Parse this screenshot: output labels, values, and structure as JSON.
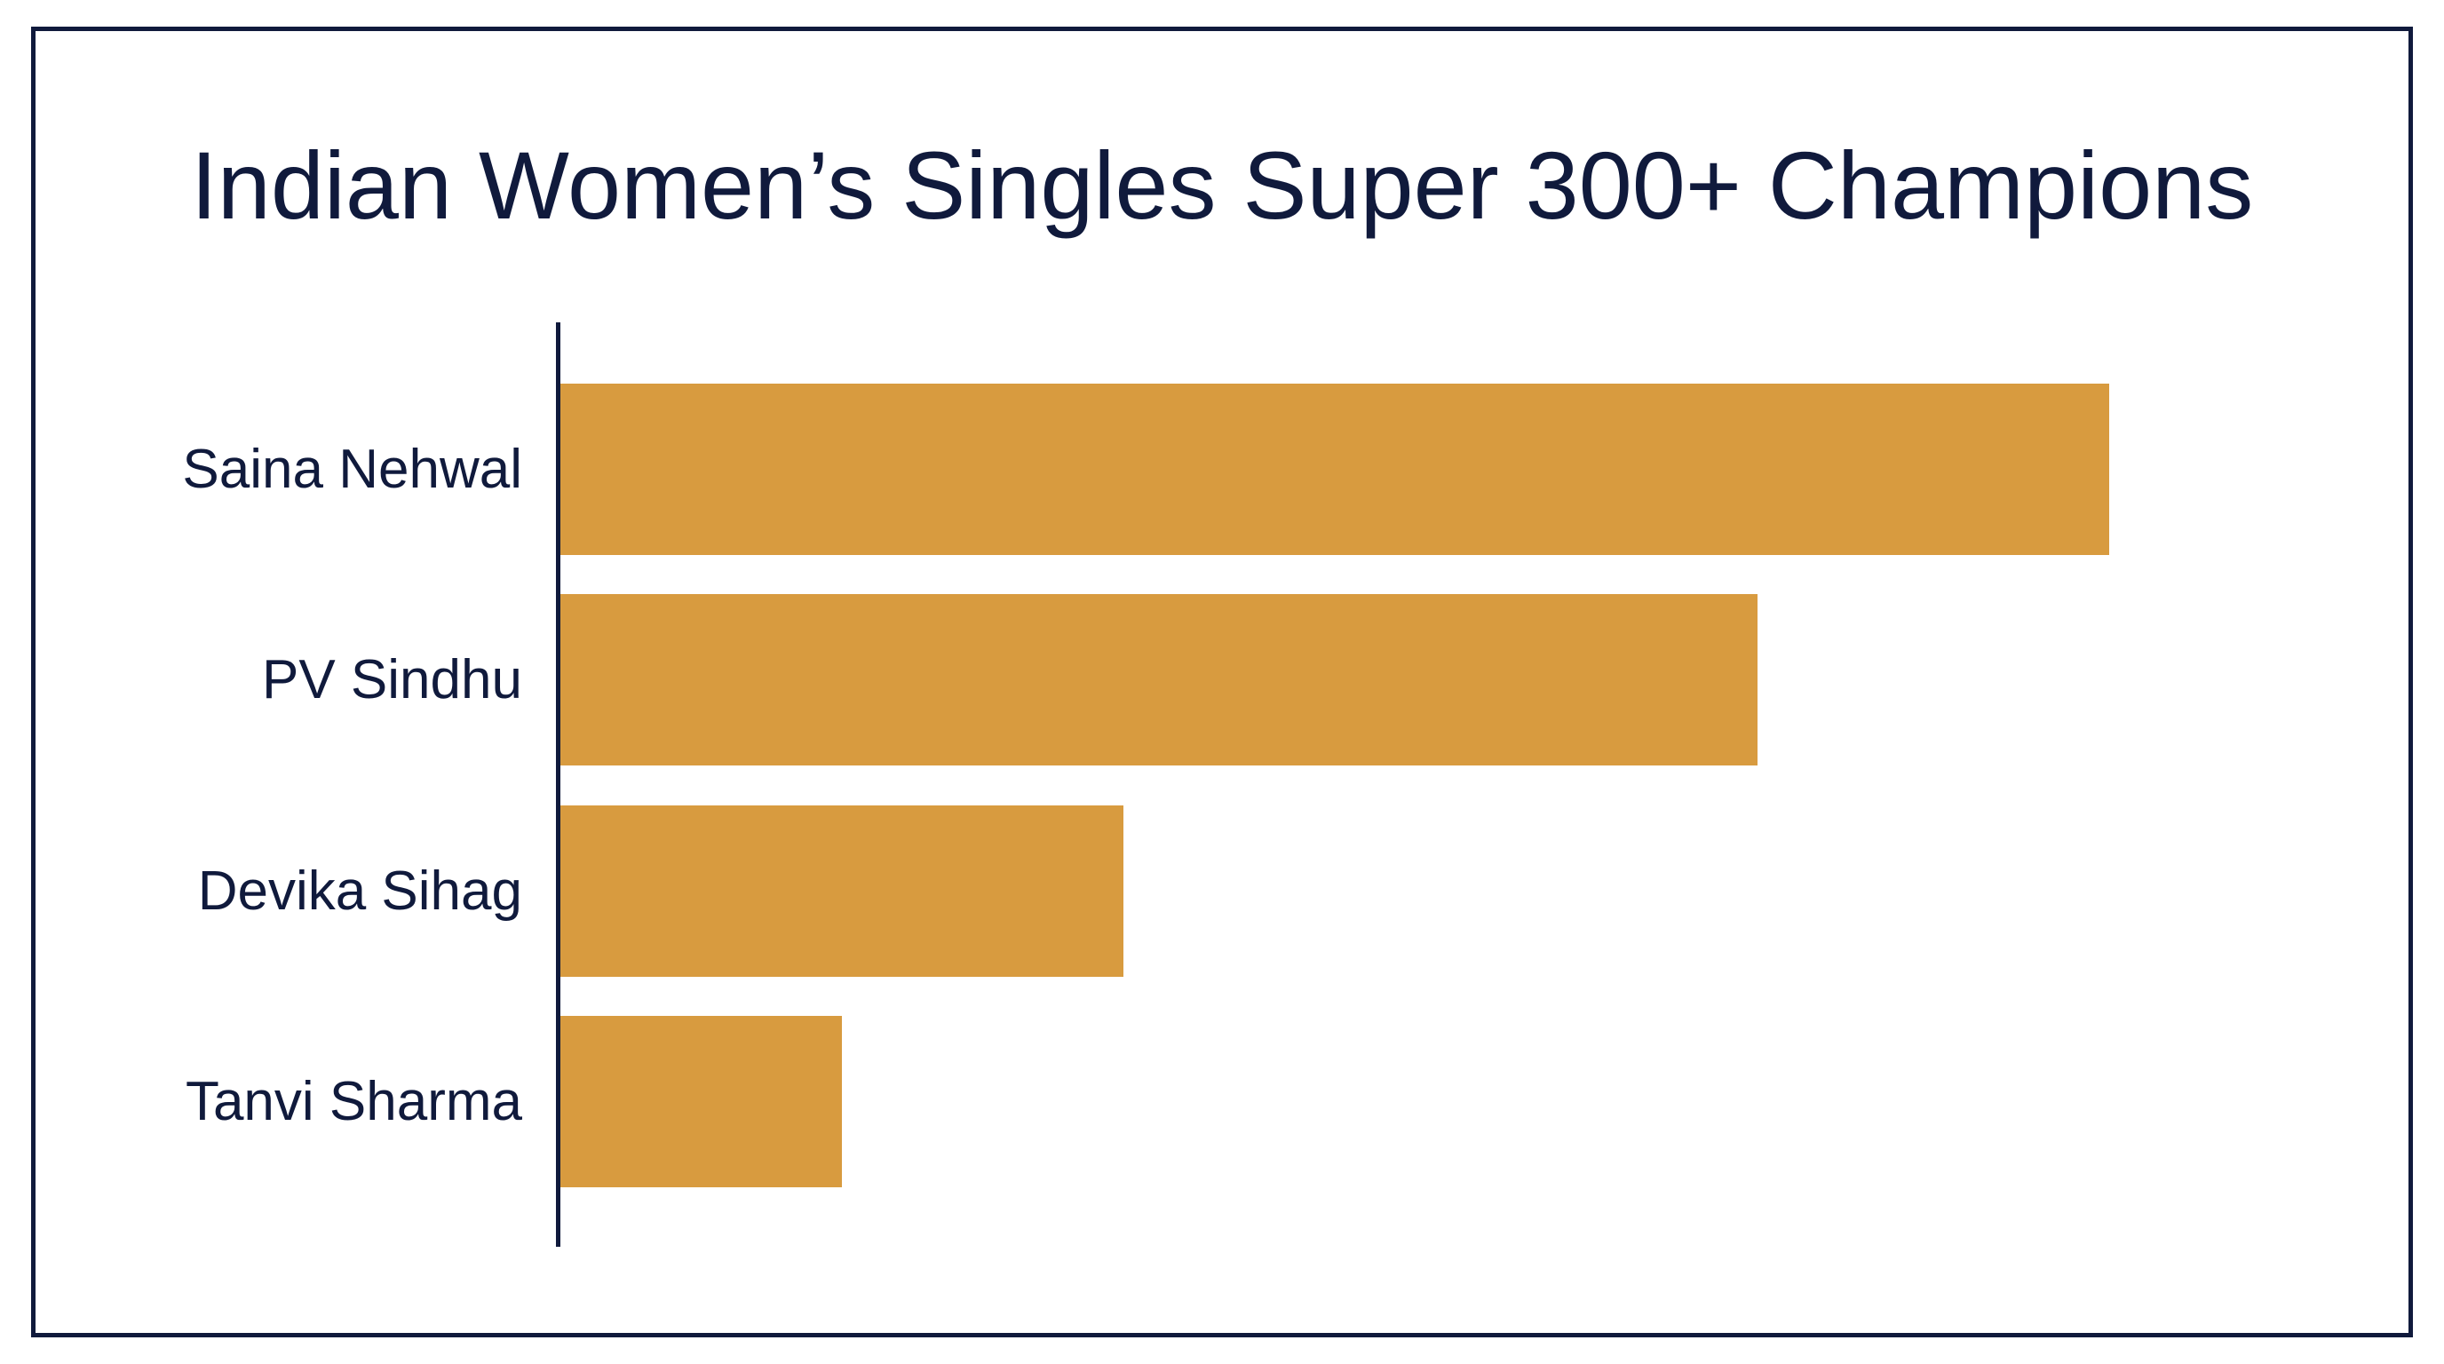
{
  "chart_data": {
    "type": "bar",
    "orientation": "horizontal",
    "title": "Indian Women’s Singles Super 300+ Champions",
    "categories": [
      "Saina Nehwal",
      "PV Sindhu",
      "Devika Sihag",
      "Tanvi Sharma"
    ],
    "values": [
      22,
      17,
      8,
      4
    ],
    "xlabel": "",
    "ylabel": "",
    "grid": false,
    "legend": "none"
  },
  "colors": {
    "bar": "#D89B3F",
    "text": "#101A3C",
    "frame": "#101A3C",
    "background": "#FFFFFF"
  }
}
